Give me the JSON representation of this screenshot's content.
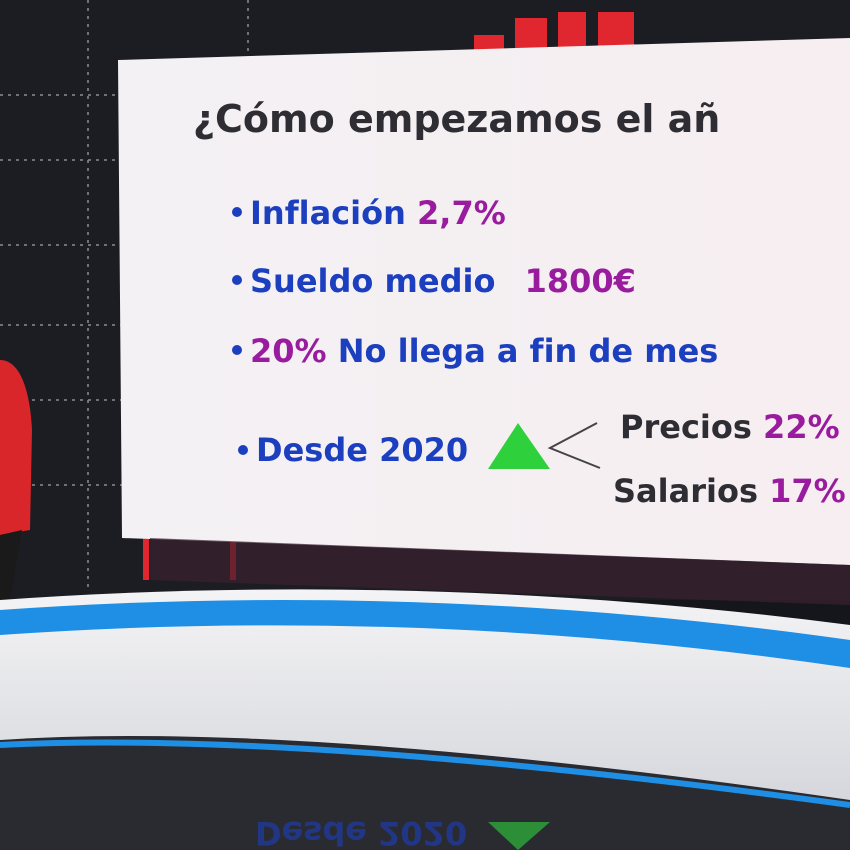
{
  "screen": {
    "title": "¿Cómo empezamos el añ",
    "items": [
      {
        "label": "Inflación",
        "value": "2,7%"
      },
      {
        "label": "Sueldo medio",
        "value": "1800€"
      },
      {
        "value": "20%",
        "label": "No llega a fin de mes"
      },
      {
        "label": "Desde 2020"
      }
    ],
    "breakdown": [
      {
        "label": "Precios",
        "value": "22%"
      },
      {
        "label": "Salarios",
        "value": "17%"
      }
    ]
  }
}
